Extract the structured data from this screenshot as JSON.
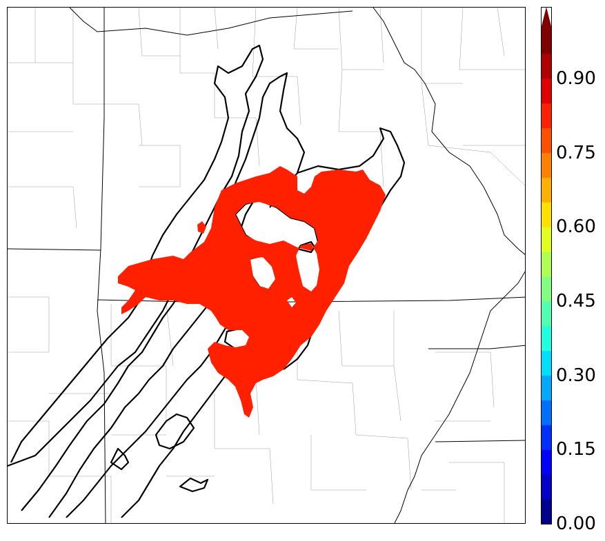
{
  "colorbar": {
    "tick_labels": [
      "0.00",
      "0.15",
      "0.30",
      "0.45",
      "0.60",
      "0.75",
      "0.90"
    ],
    "tick_values": [
      0.0,
      0.15,
      0.3,
      0.45,
      0.6,
      0.75,
      0.9
    ],
    "colors": [
      "#00008f",
      "#0000c8",
      "#0000ff",
      "#0030ff",
      "#0070ff",
      "#00a8ff",
      "#00dfff",
      "#20ffe0",
      "#50ffaf",
      "#80ff80",
      "#b0ff50",
      "#e0ff20",
      "#ffe000",
      "#ffb000",
      "#ff8000",
      "#ff5000",
      "#ff2000",
      "#e00000",
      "#b00000",
      "#800000"
    ],
    "extend": "max"
  },
  "legend": {
    "filled_color": "#ff2000",
    "contour_color": "#000000"
  }
}
